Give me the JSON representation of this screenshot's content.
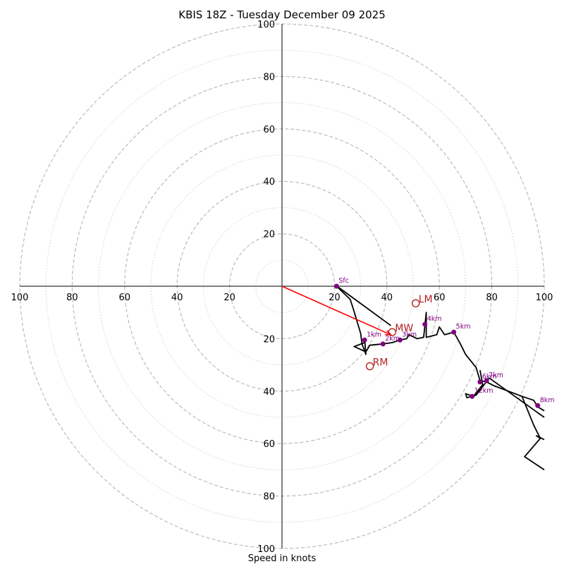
{
  "chart_data": {
    "type": "hodograph",
    "title": "KBIS 18Z - Tuesday December 09 2025",
    "xlabel": "Speed in knots",
    "units": "knots",
    "range": [
      -100,
      100
    ],
    "rings_major": [
      20,
      40,
      60,
      80,
      100
    ],
    "rings_minor": [
      10,
      30,
      50,
      70,
      90
    ],
    "x_tick_labels": [
      "100",
      "80",
      "60",
      "40",
      "20",
      "20",
      "40",
      "60",
      "80",
      "100"
    ],
    "y_tick_labels": [
      "100",
      "80",
      "60",
      "40",
      "20",
      "20",
      "40",
      "60",
      "80",
      "100"
    ],
    "x_tick_values": [
      -100,
      -80,
      -60,
      -40,
      -20,
      20,
      40,
      60,
      80,
      100
    ],
    "y_tick_values": [
      100,
      80,
      60,
      40,
      20,
      -20,
      -40,
      -60,
      -80,
      -100
    ],
    "trace": [
      [
        20.8,
        0
      ],
      [
        26,
        -5
      ],
      [
        27,
        -8
      ],
      [
        30,
        -18
      ],
      [
        30.5,
        -22
      ],
      [
        32,
        -26
      ],
      [
        31.5,
        -20
      ],
      [
        31.5,
        -21.5
      ],
      [
        27.5,
        -23
      ],
      [
        32,
        -25
      ],
      [
        33.5,
        -22.5
      ],
      [
        38.5,
        -22
      ],
      [
        42,
        -21.5
      ],
      [
        45,
        -20.5
      ],
      [
        47.5,
        -20
      ],
      [
        48.5,
        -18.5
      ],
      [
        51.5,
        -20
      ],
      [
        54,
        -19.5
      ],
      [
        54.5,
        -15
      ],
      [
        55,
        -10
      ],
      [
        55,
        -19.5
      ],
      [
        59,
        -18.5
      ],
      [
        60,
        -15.5
      ],
      [
        62,
        -18.5
      ],
      [
        65.5,
        -17.5
      ],
      [
        68,
        -22
      ],
      [
        70,
        -26
      ],
      [
        74,
        -31
      ],
      [
        75.5,
        -36
      ],
      [
        78,
        -36.5
      ],
      [
        81,
        -38
      ],
      [
        91.5,
        -42
      ],
      [
        96,
        -43.5
      ],
      [
        97.5,
        -46
      ],
      [
        100,
        -47.5
      ]
    ],
    "trace2": [
      [
        21,
        0
      ],
      [
        41.5,
        -15
      ]
    ],
    "trace3": [
      [
        75.5,
        -32
      ],
      [
        76.5,
        -37.5
      ],
      [
        73,
        -42
      ],
      [
        70,
        -41
      ],
      [
        70.5,
        -42.5
      ],
      [
        74,
        -41.5
      ],
      [
        79,
        -35
      ],
      [
        100,
        -50
      ]
    ],
    "trace4": [
      [
        91.5,
        -42
      ],
      [
        96,
        -53
      ],
      [
        98.5,
        -58
      ],
      [
        97,
        -57
      ],
      [
        100,
        -58.5
      ]
    ],
    "trace5": [
      [
        98.5,
        -58
      ],
      [
        92.5,
        -65
      ],
      [
        100,
        -70
      ]
    ],
    "points": [
      {
        "label": "Sfc",
        "u": 20.8,
        "v": 0
      },
      {
        "label": "1km",
        "u": 31.5,
        "v": -20.5
      },
      {
        "label": "2km",
        "u": 38.5,
        "v": -22
      },
      {
        "label": "3km",
        "u": 45,
        "v": -20.5
      },
      {
        "label": "4km",
        "u": 54.5,
        "v": -14.5
      },
      {
        "label": "5km",
        "u": 65.5,
        "v": -17.5
      },
      {
        "label": "6km",
        "u": 75.5,
        "v": -36.5
      },
      {
        "label": "7km",
        "u": 78,
        "v": -36
      },
      {
        "label": "8km",
        "u": 97.5,
        "v": -45.5
      },
      {
        "label": "12km",
        "u": 72.5,
        "v": -42
      }
    ],
    "motions": [
      {
        "label": "LM",
        "u": 51,
        "v": -6.5
      },
      {
        "label": "MW",
        "u": 42,
        "v": -17.5
      },
      {
        "label": "RM",
        "u": 33.5,
        "v": -30.5
      }
    ],
    "storm_motion_vector": {
      "from": [
        0,
        0
      ],
      "to": [
        41.5,
        -18.5
      ]
    },
    "colors": {
      "trace": "#000000",
      "points": "#800080",
      "motions": "#b22222",
      "vector": "#ff0000",
      "grid": "#bbbbbb",
      "axes": "#000000"
    }
  }
}
